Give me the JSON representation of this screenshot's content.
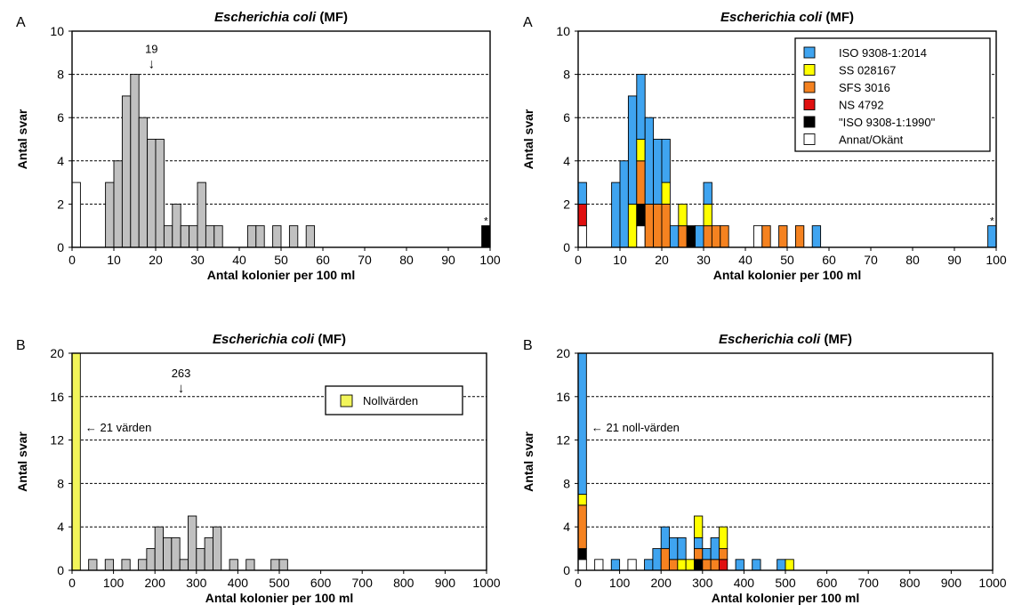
{
  "colors": {
    "gray": "#c0c0c0",
    "ISO 9308-1:2014": "#3fa4f0",
    "SS 028167": "#ffff00",
    "SFS 3016": "#f58220",
    "NS 4792": "#e01010",
    "ISO 9308-1:1990": "#000000",
    "Annat/Okänt": "#ffffff",
    "Nollvärden": "#f2f55a"
  },
  "chart_data": [
    {
      "id": "A-left",
      "panel_letter": "A",
      "type": "bar",
      "title_italic": "Escherichia coli",
      "title_suffix": " (MF)",
      "xlabel": "Antal kolonier per 100 ml",
      "ylabel": "Antal svar",
      "xlim": [
        0,
        100
      ],
      "ylim": [
        0,
        10
      ],
      "xticks": [
        0,
        10,
        20,
        30,
        40,
        50,
        60,
        70,
        80,
        90,
        100
      ],
      "yticks": [
        0,
        2,
        4,
        6,
        8,
        10
      ],
      "gridlines": [
        2,
        4,
        6,
        8
      ],
      "bin_width": 2,
      "bars": [
        {
          "x": 0,
          "segments": [
            {
              "cat": "Annat/Okänt",
              "n": 3
            }
          ]
        },
        {
          "x": 8,
          "segments": [
            {
              "cat": "gray",
              "n": 3
            }
          ]
        },
        {
          "x": 10,
          "segments": [
            {
              "cat": "gray",
              "n": 4
            }
          ]
        },
        {
          "x": 12,
          "segments": [
            {
              "cat": "gray",
              "n": 7
            }
          ]
        },
        {
          "x": 14,
          "segments": [
            {
              "cat": "gray",
              "n": 8
            }
          ]
        },
        {
          "x": 16,
          "segments": [
            {
              "cat": "gray",
              "n": 6
            }
          ]
        },
        {
          "x": 18,
          "segments": [
            {
              "cat": "gray",
              "n": 5
            }
          ]
        },
        {
          "x": 20,
          "segments": [
            {
              "cat": "gray",
              "n": 5
            }
          ]
        },
        {
          "x": 22,
          "segments": [
            {
              "cat": "gray",
              "n": 1
            }
          ]
        },
        {
          "x": 24,
          "segments": [
            {
              "cat": "gray",
              "n": 2
            }
          ]
        },
        {
          "x": 26,
          "segments": [
            {
              "cat": "gray",
              "n": 1
            }
          ]
        },
        {
          "x": 28,
          "segments": [
            {
              "cat": "gray",
              "n": 1
            }
          ]
        },
        {
          "x": 30,
          "segments": [
            {
              "cat": "gray",
              "n": 3
            }
          ]
        },
        {
          "x": 32,
          "segments": [
            {
              "cat": "gray",
              "n": 1
            }
          ]
        },
        {
          "x": 34,
          "segments": [
            {
              "cat": "gray",
              "n": 1
            }
          ]
        },
        {
          "x": 42,
          "segments": [
            {
              "cat": "gray",
              "n": 1
            }
          ]
        },
        {
          "x": 44,
          "segments": [
            {
              "cat": "gray",
              "n": 1
            }
          ]
        },
        {
          "x": 48,
          "segments": [
            {
              "cat": "gray",
              "n": 1
            }
          ]
        },
        {
          "x": 52,
          "segments": [
            {
              "cat": "gray",
              "n": 1
            }
          ]
        },
        {
          "x": 56,
          "segments": [
            {
              "cat": "gray",
              "n": 1
            }
          ]
        },
        {
          "x": 98,
          "segments": [
            {
              "cat": "ISO 9308-1:1990",
              "n": 1
            }
          ]
        }
      ],
      "annotations": [
        {
          "type": "arrow",
          "text": "19",
          "x": 19,
          "y": 9.0
        },
        {
          "type": "star",
          "text": "*",
          "x": 99,
          "y": 1.05
        }
      ]
    },
    {
      "id": "A-right",
      "panel_letter": "A",
      "type": "bar",
      "title_italic": "Escherichia coli",
      "title_suffix": " (MF)",
      "xlabel": "Antal kolonier per 100 ml",
      "ylabel": "Antal svar",
      "xlim": [
        0,
        100
      ],
      "ylim": [
        0,
        10
      ],
      "xticks": [
        0,
        10,
        20,
        30,
        40,
        50,
        60,
        70,
        80,
        90,
        100
      ],
      "yticks": [
        0,
        2,
        4,
        6,
        8,
        10
      ],
      "gridlines": [
        2,
        4,
        6,
        8
      ],
      "bin_width": 2,
      "bars": [
        {
          "x": 0,
          "segments": [
            {
              "cat": "Annat/Okänt",
              "n": 1
            },
            {
              "cat": "NS 4792",
              "n": 1
            },
            {
              "cat": "ISO 9308-1:2014",
              "n": 1
            }
          ]
        },
        {
          "x": 8,
          "segments": [
            {
              "cat": "ISO 9308-1:2014",
              "n": 3
            }
          ]
        },
        {
          "x": 10,
          "segments": [
            {
              "cat": "ISO 9308-1:2014",
              "n": 4
            }
          ]
        },
        {
          "x": 12,
          "segments": [
            {
              "cat": "SS 028167",
              "n": 2
            },
            {
              "cat": "ISO 9308-1:2014",
              "n": 5
            }
          ]
        },
        {
          "x": 14,
          "segments": [
            {
              "cat": "Annat/Okänt",
              "n": 1
            },
            {
              "cat": "ISO 9308-1:1990",
              "n": 1
            },
            {
              "cat": "SFS 3016",
              "n": 2
            },
            {
              "cat": "SS 028167",
              "n": 1
            },
            {
              "cat": "ISO 9308-1:2014",
              "n": 3
            }
          ]
        },
        {
          "x": 16,
          "segments": [
            {
              "cat": "SFS 3016",
              "n": 2
            },
            {
              "cat": "ISO 9308-1:2014",
              "n": 4
            }
          ]
        },
        {
          "x": 18,
          "segments": [
            {
              "cat": "SFS 3016",
              "n": 2
            },
            {
              "cat": "ISO 9308-1:2014",
              "n": 3
            }
          ]
        },
        {
          "x": 20,
          "segments": [
            {
              "cat": "SFS 3016",
              "n": 2
            },
            {
              "cat": "SS 028167",
              "n": 1
            },
            {
              "cat": "ISO 9308-1:2014",
              "n": 2
            }
          ]
        },
        {
          "x": 22,
          "segments": [
            {
              "cat": "ISO 9308-1:2014",
              "n": 1
            }
          ]
        },
        {
          "x": 24,
          "segments": [
            {
              "cat": "SFS 3016",
              "n": 1
            },
            {
              "cat": "SS 028167",
              "n": 1
            }
          ]
        },
        {
          "x": 26,
          "segments": [
            {
              "cat": "ISO 9308-1:1990",
              "n": 1
            }
          ]
        },
        {
          "x": 28,
          "segments": [
            {
              "cat": "ISO 9308-1:2014",
              "n": 1
            }
          ]
        },
        {
          "x": 30,
          "segments": [
            {
              "cat": "SFS 3016",
              "n": 1
            },
            {
              "cat": "SS 028167",
              "n": 1
            },
            {
              "cat": "ISO 9308-1:2014",
              "n": 1
            }
          ]
        },
        {
          "x": 32,
          "segments": [
            {
              "cat": "SFS 3016",
              "n": 1
            }
          ]
        },
        {
          "x": 34,
          "segments": [
            {
              "cat": "SFS 3016",
              "n": 1
            }
          ]
        },
        {
          "x": 42,
          "segments": [
            {
              "cat": "Annat/Okänt",
              "n": 1
            }
          ]
        },
        {
          "x": 44,
          "segments": [
            {
              "cat": "SFS 3016",
              "n": 1
            }
          ]
        },
        {
          "x": 48,
          "segments": [
            {
              "cat": "SFS 3016",
              "n": 1
            }
          ]
        },
        {
          "x": 52,
          "segments": [
            {
              "cat": "SFS 3016",
              "n": 1
            }
          ]
        },
        {
          "x": 56,
          "segments": [
            {
              "cat": "ISO 9308-1:2014",
              "n": 1
            }
          ]
        },
        {
          "x": 98,
          "segments": [
            {
              "cat": "ISO 9308-1:2014",
              "n": 1
            }
          ]
        }
      ],
      "legend": {
        "placement": "top-right",
        "entries": [
          {
            "cat": "ISO 9308-1:2014",
            "label": "ISO 9308-1:2014"
          },
          {
            "cat": "SS 028167",
            "label": "SS 028167"
          },
          {
            "cat": "SFS 3016",
            "label": "SFS 3016"
          },
          {
            "cat": "NS 4792",
            "label": "NS 4792"
          },
          {
            "cat": "ISO 9308-1:1990",
            "label": "\"ISO 9308-1:1990\""
          },
          {
            "cat": "Annat/Okänt",
            "label": "Annat/Okänt"
          }
        ]
      },
      "annotations": [
        {
          "type": "star",
          "text": "*",
          "x": 99,
          "y": 1.05
        }
      ]
    },
    {
      "id": "B-left",
      "panel_letter": "B",
      "type": "bar",
      "title_italic": "Escherichia coli",
      "title_suffix": " (MF)",
      "xlabel": "Antal kolonier per 100 ml",
      "ylabel": "Antal svar",
      "xlim": [
        0,
        1000
      ],
      "ylim": [
        0,
        20
      ],
      "xticks": [
        0,
        100,
        200,
        300,
        400,
        500,
        600,
        700,
        800,
        900,
        1000
      ],
      "yticks": [
        0,
        4,
        8,
        12,
        16,
        20
      ],
      "gridlines": [
        4,
        8,
        12,
        16
      ],
      "bin_width": 20,
      "bars": [
        {
          "x": 0,
          "segments": [
            {
              "cat": "Nollvärden",
              "n": 20
            }
          ]
        },
        {
          "x": 40,
          "segments": [
            {
              "cat": "gray",
              "n": 1
            }
          ]
        },
        {
          "x": 80,
          "segments": [
            {
              "cat": "gray",
              "n": 1
            }
          ]
        },
        {
          "x": 120,
          "segments": [
            {
              "cat": "gray",
              "n": 1
            }
          ]
        },
        {
          "x": 160,
          "segments": [
            {
              "cat": "gray",
              "n": 1
            }
          ]
        },
        {
          "x": 180,
          "segments": [
            {
              "cat": "gray",
              "n": 2
            }
          ]
        },
        {
          "x": 200,
          "segments": [
            {
              "cat": "gray",
              "n": 4
            }
          ]
        },
        {
          "x": 220,
          "segments": [
            {
              "cat": "gray",
              "n": 3
            }
          ]
        },
        {
          "x": 240,
          "segments": [
            {
              "cat": "gray",
              "n": 3
            }
          ]
        },
        {
          "x": 260,
          "segments": [
            {
              "cat": "gray",
              "n": 1
            }
          ]
        },
        {
          "x": 280,
          "segments": [
            {
              "cat": "gray",
              "n": 5
            }
          ]
        },
        {
          "x": 300,
          "segments": [
            {
              "cat": "gray",
              "n": 2
            }
          ]
        },
        {
          "x": 320,
          "segments": [
            {
              "cat": "gray",
              "n": 3
            }
          ]
        },
        {
          "x": 340,
          "segments": [
            {
              "cat": "gray",
              "n": 4
            }
          ]
        },
        {
          "x": 380,
          "segments": [
            {
              "cat": "gray",
              "n": 1
            }
          ]
        },
        {
          "x": 420,
          "segments": [
            {
              "cat": "gray",
              "n": 1
            }
          ]
        },
        {
          "x": 480,
          "segments": [
            {
              "cat": "gray",
              "n": 1
            }
          ]
        },
        {
          "x": 500,
          "segments": [
            {
              "cat": "gray",
              "n": 1
            }
          ]
        }
      ],
      "legend": {
        "placement": "top-right",
        "entries": [
          {
            "cat": "Nollvärden",
            "label": "Nollvärden"
          }
        ]
      },
      "annotations": [
        {
          "type": "arrow",
          "text": "263",
          "x": 263,
          "y": 17.8
        },
        {
          "type": "note",
          "text": "← 21 värden",
          "x": 32,
          "y": 12.8
        }
      ]
    },
    {
      "id": "B-right",
      "panel_letter": "B",
      "type": "bar",
      "title_italic": "Escherichia coli",
      "title_suffix": " (MF)",
      "xlabel": "Antal kolonier per 100 ml",
      "ylabel": "Antal svar",
      "xlim": [
        0,
        1000
      ],
      "ylim": [
        0,
        20
      ],
      "xticks": [
        0,
        100,
        200,
        300,
        400,
        500,
        600,
        700,
        800,
        900,
        1000
      ],
      "yticks": [
        0,
        4,
        8,
        12,
        16,
        20
      ],
      "gridlines": [
        4,
        8,
        12,
        16
      ],
      "bin_width": 20,
      "bars": [
        {
          "x": 0,
          "segments": [
            {
              "cat": "Annat/Okänt",
              "n": 1
            },
            {
              "cat": "ISO 9308-1:1990",
              "n": 1
            },
            {
              "cat": "SFS 3016",
              "n": 4
            },
            {
              "cat": "SS 028167",
              "n": 1
            },
            {
              "cat": "ISO 9308-1:2014",
              "n": 13
            }
          ]
        },
        {
          "x": 40,
          "segments": [
            {
              "cat": "Annat/Okänt",
              "n": 1
            }
          ]
        },
        {
          "x": 80,
          "segments": [
            {
              "cat": "ISO 9308-1:2014",
              "n": 1
            }
          ]
        },
        {
          "x": 120,
          "segments": [
            {
              "cat": "Annat/Okänt",
              "n": 1
            }
          ]
        },
        {
          "x": 160,
          "segments": [
            {
              "cat": "ISO 9308-1:2014",
              "n": 1
            }
          ]
        },
        {
          "x": 180,
          "segments": [
            {
              "cat": "ISO 9308-1:2014",
              "n": 2
            }
          ]
        },
        {
          "x": 200,
          "segments": [
            {
              "cat": "SFS 3016",
              "n": 2
            },
            {
              "cat": "ISO 9308-1:2014",
              "n": 2
            }
          ]
        },
        {
          "x": 220,
          "segments": [
            {
              "cat": "SFS 3016",
              "n": 1
            },
            {
              "cat": "ISO 9308-1:2014",
              "n": 2
            }
          ]
        },
        {
          "x": 240,
          "segments": [
            {
              "cat": "SS 028167",
              "n": 1
            },
            {
              "cat": "ISO 9308-1:2014",
              "n": 2
            }
          ]
        },
        {
          "x": 260,
          "segments": [
            {
              "cat": "SS 028167",
              "n": 1
            }
          ]
        },
        {
          "x": 280,
          "segments": [
            {
              "cat": "ISO 9308-1:1990",
              "n": 1
            },
            {
              "cat": "SFS 3016",
              "n": 1
            },
            {
              "cat": "ISO 9308-1:2014",
              "n": 1
            },
            {
              "cat": "SS 028167",
              "n": 2
            }
          ]
        },
        {
          "x": 300,
          "segments": [
            {
              "cat": "SFS 3016",
              "n": 1
            },
            {
              "cat": "ISO 9308-1:2014",
              "n": 1
            }
          ]
        },
        {
          "x": 320,
          "segments": [
            {
              "cat": "SFS 3016",
              "n": 1
            },
            {
              "cat": "ISO 9308-1:2014",
              "n": 2
            }
          ]
        },
        {
          "x": 340,
          "segments": [
            {
              "cat": "NS 4792",
              "n": 1
            },
            {
              "cat": "SFS 3016",
              "n": 1
            },
            {
              "cat": "SS 028167",
              "n": 2
            }
          ]
        },
        {
          "x": 380,
          "segments": [
            {
              "cat": "ISO 9308-1:2014",
              "n": 1
            }
          ]
        },
        {
          "x": 420,
          "segments": [
            {
              "cat": "ISO 9308-1:2014",
              "n": 1
            }
          ]
        },
        {
          "x": 480,
          "segments": [
            {
              "cat": "ISO 9308-1:2014",
              "n": 1
            }
          ]
        },
        {
          "x": 500,
          "segments": [
            {
              "cat": "SS 028167",
              "n": 1
            }
          ]
        }
      ],
      "annotations": [
        {
          "type": "note",
          "text": "← 21 noll-värden",
          "x": 32,
          "y": 12.8
        }
      ]
    }
  ]
}
